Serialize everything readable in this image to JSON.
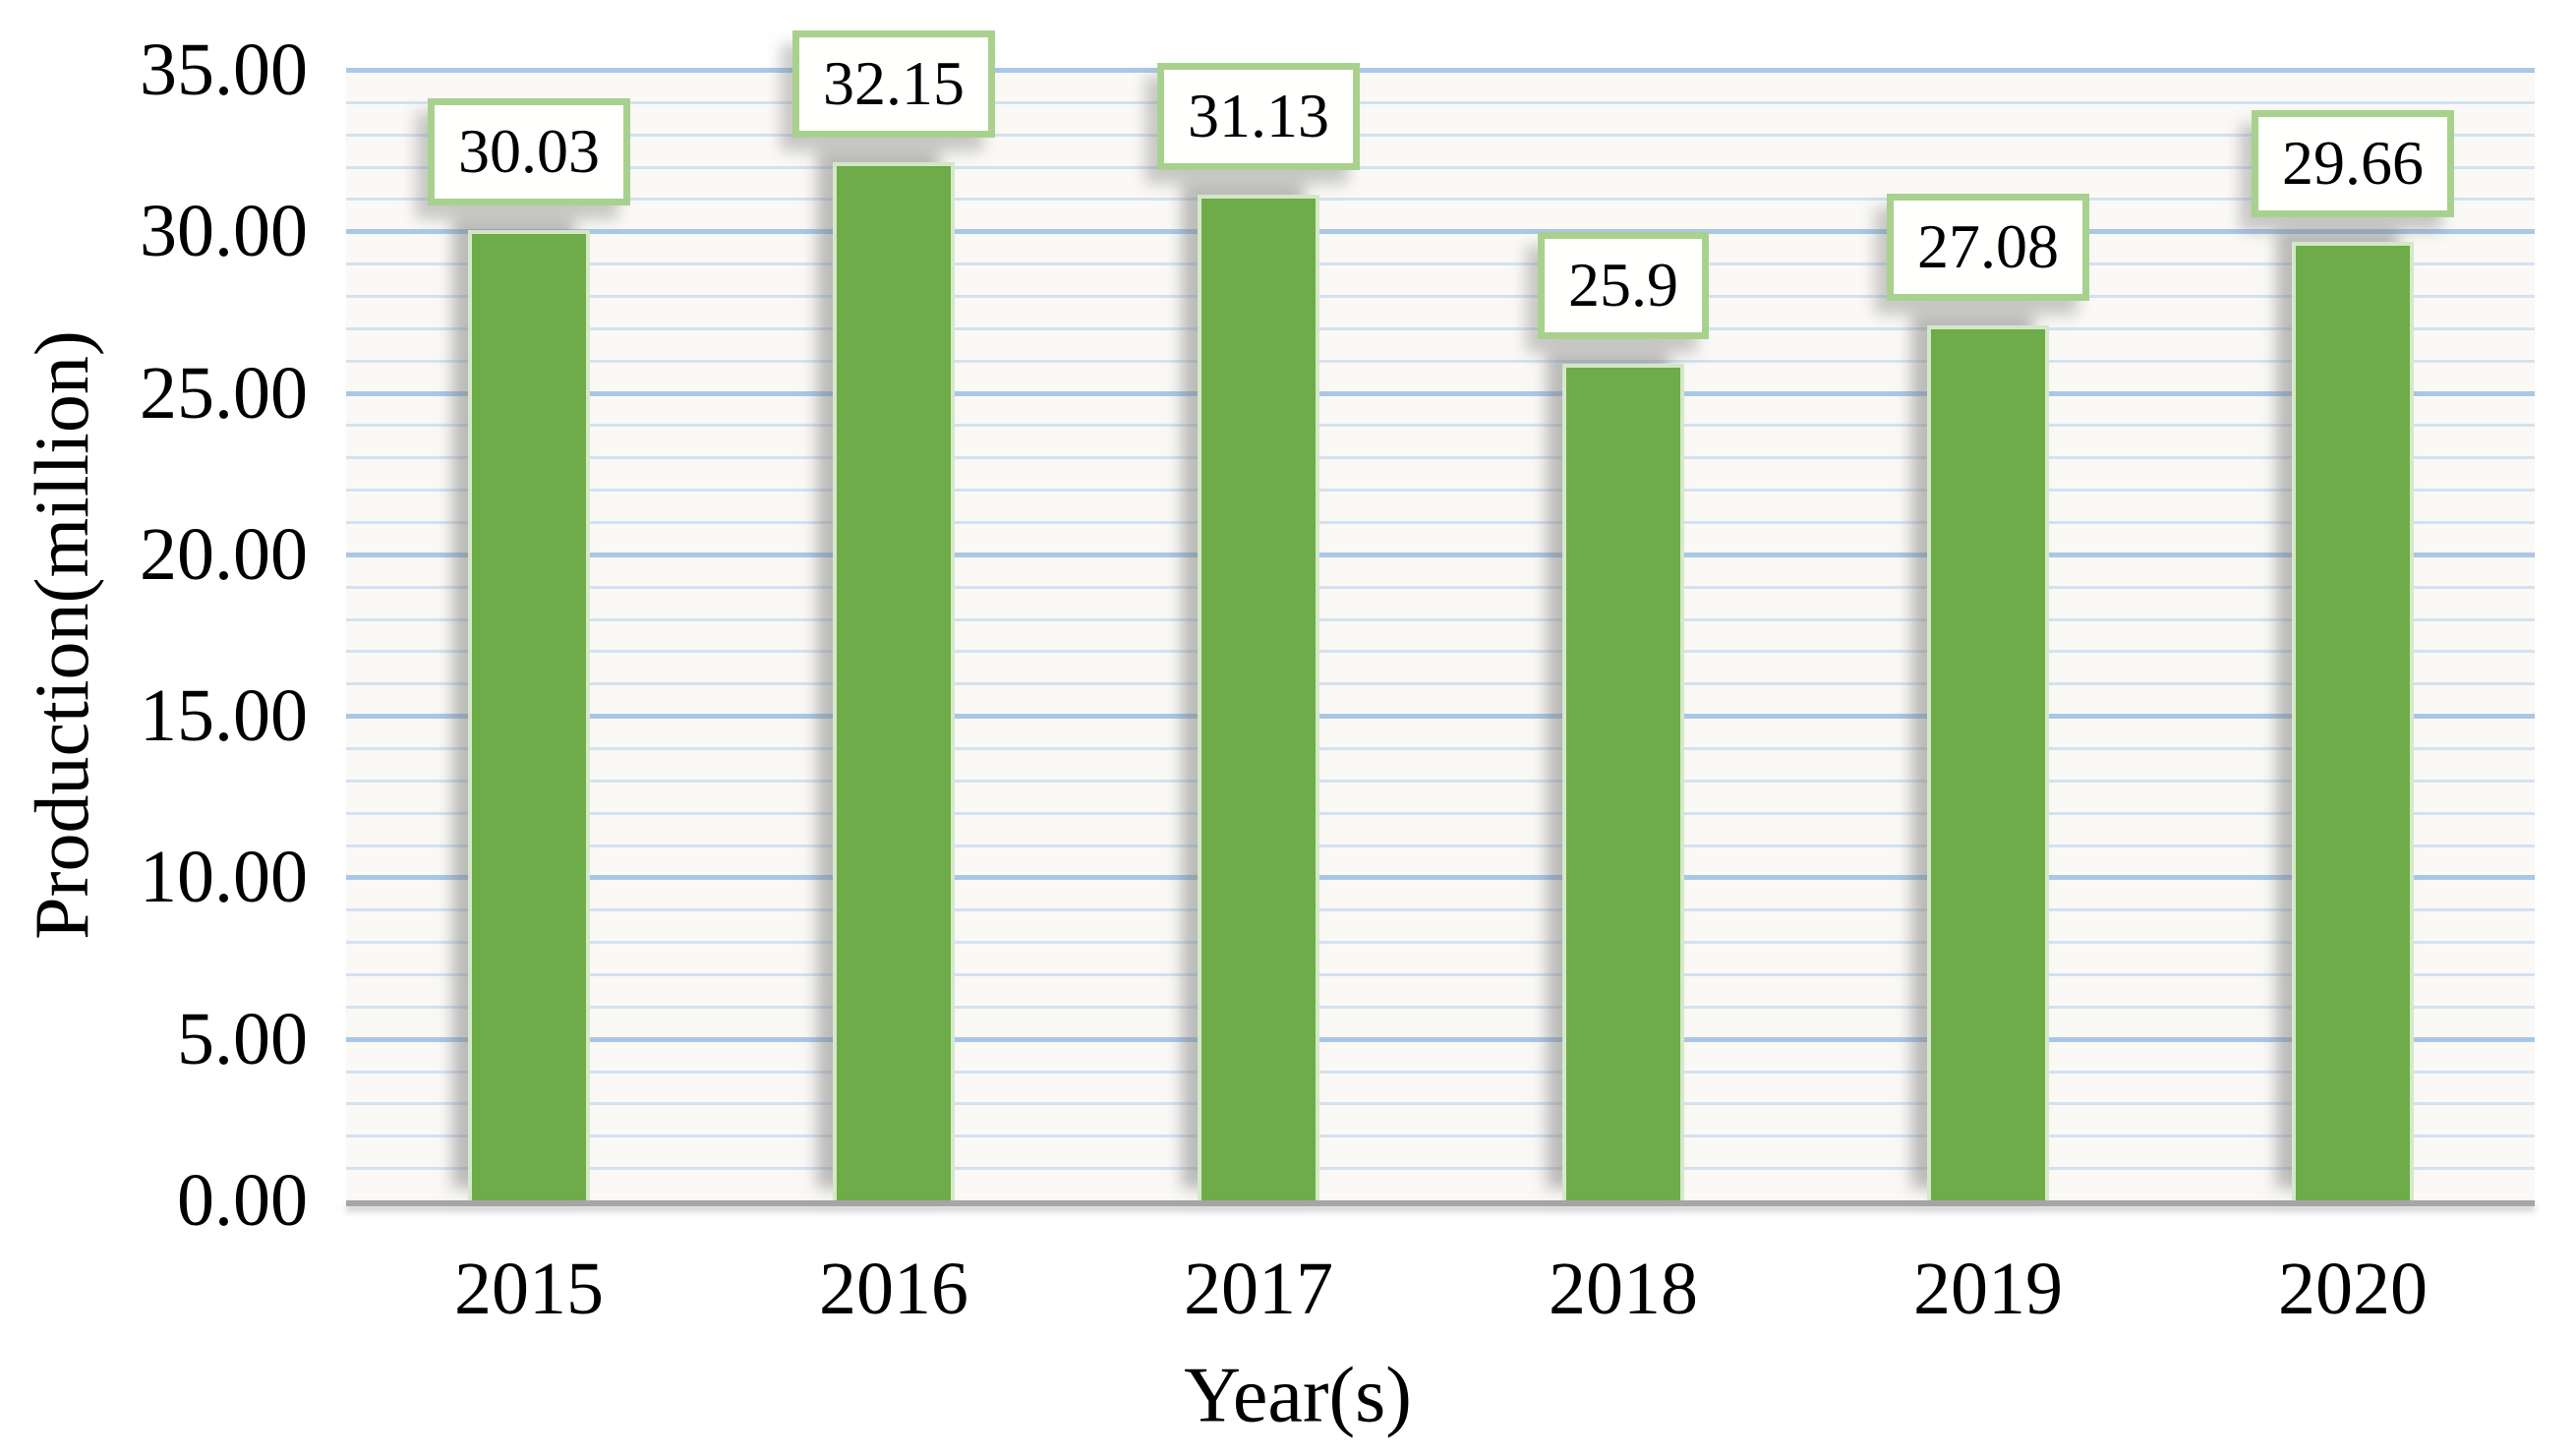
{
  "chart_data": {
    "type": "bar",
    "title": "",
    "xlabel": "Year(s)",
    "ylabel": "Production(million)",
    "categories": [
      "2015",
      "2016",
      "2017",
      "2018",
      "2019",
      "2020"
    ],
    "values": [
      30.03,
      32.15,
      31.13,
      25.9,
      27.08,
      29.66
    ],
    "data_labels": [
      "30.03",
      "32.15",
      "31.13",
      "25.9",
      "27.08",
      "29.66"
    ],
    "ylim": [
      0,
      35
    ],
    "y_major_step": 5,
    "y_minor_step": 1,
    "y_tick_labels": [
      "0.00",
      "5.00",
      "10.00",
      "15.00",
      "20.00",
      "25.00",
      "30.00",
      "35.00"
    ],
    "grid": "on",
    "legend": "none",
    "colors": {
      "bar_fill": "#6dac49",
      "bar_edge_highlight": "#d6e8c9",
      "label_box_border": "#a9d18e",
      "label_box_background": "#fffffe",
      "gridline_minor": "#d3e2f2",
      "gridline_major": "#a9c8e8",
      "axis_line": "#a6a6a6",
      "text": "#000000",
      "plot_background": "#faf9f6"
    }
  }
}
